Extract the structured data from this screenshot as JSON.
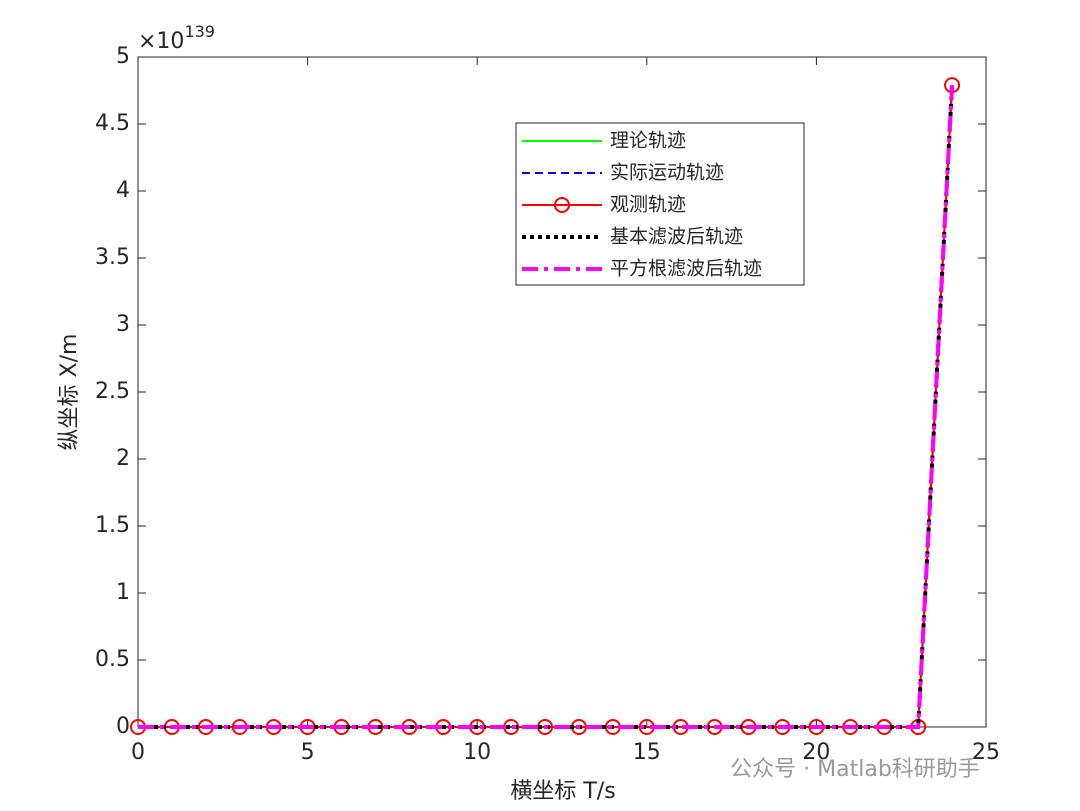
{
  "chart_data": {
    "type": "line",
    "x_label": "横坐标 T/s",
    "y_label": "纵坐标 X/m",
    "y_exponent": {
      "base": "×10",
      "power": "139"
    },
    "watermark": "公众号 · Matlab科研助手",
    "x": [
      0,
      1,
      2,
      3,
      4,
      5,
      6,
      7,
      8,
      9,
      10,
      11,
      12,
      13,
      14,
      15,
      16,
      17,
      18,
      19,
      20,
      21,
      22,
      23,
      24
    ],
    "series": [
      {
        "name": "理论轨迹",
        "color": "#00ff00",
        "style": "solid",
        "width": 2,
        "values": [
          0,
          0,
          0,
          0,
          0,
          0,
          0,
          0,
          0,
          0,
          0,
          0,
          0,
          0,
          0,
          0,
          0,
          0,
          0,
          0,
          0,
          0,
          0,
          0,
          4.79
        ]
      },
      {
        "name": "实际运动轨迹",
        "color": "#0000ff",
        "style": "dashed",
        "width": 2,
        "values": [
          0,
          0,
          0,
          0,
          0,
          0,
          0,
          0,
          0,
          0,
          0,
          0,
          0,
          0,
          0,
          0,
          0,
          0,
          0,
          0,
          0,
          0,
          0,
          0,
          4.79
        ]
      },
      {
        "name": "观测轨迹",
        "color": "#ff0000",
        "style": "solid",
        "width": 2,
        "marker": "circle",
        "values": [
          0,
          0,
          0,
          0,
          0,
          0,
          0,
          0,
          0,
          0,
          0,
          0,
          0,
          0,
          0,
          0,
          0,
          0,
          0,
          0,
          0,
          0,
          0,
          0,
          4.79
        ]
      },
      {
        "name": "基本滤波后轨迹",
        "color": "#000000",
        "style": "dotted",
        "width": 4,
        "values": [
          0,
          0,
          0,
          0,
          0,
          0,
          0,
          0,
          0,
          0,
          0,
          0,
          0,
          0,
          0,
          0,
          0,
          0,
          0,
          0,
          0,
          0,
          0,
          0,
          4.79
        ]
      },
      {
        "name": "平方根滤波后轨迹",
        "color": "#ff00ff",
        "style": "dashdot",
        "width": 4,
        "values": [
          0,
          0,
          0,
          0,
          0,
          0,
          0,
          0,
          0,
          0,
          0,
          0,
          0,
          0,
          0,
          0,
          0,
          0,
          0,
          0,
          0,
          0,
          0,
          0,
          4.79
        ]
      }
    ],
    "xlim": [
      0,
      25
    ],
    "xticks": [
      0,
      5,
      10,
      15,
      20,
      25
    ],
    "ylim": [
      0,
      5
    ],
    "yticks": [
      0,
      0.5,
      1,
      1.5,
      2,
      2.5,
      3,
      3.5,
      4,
      4.5,
      5
    ],
    "grid": false,
    "legend": "top-right"
  }
}
